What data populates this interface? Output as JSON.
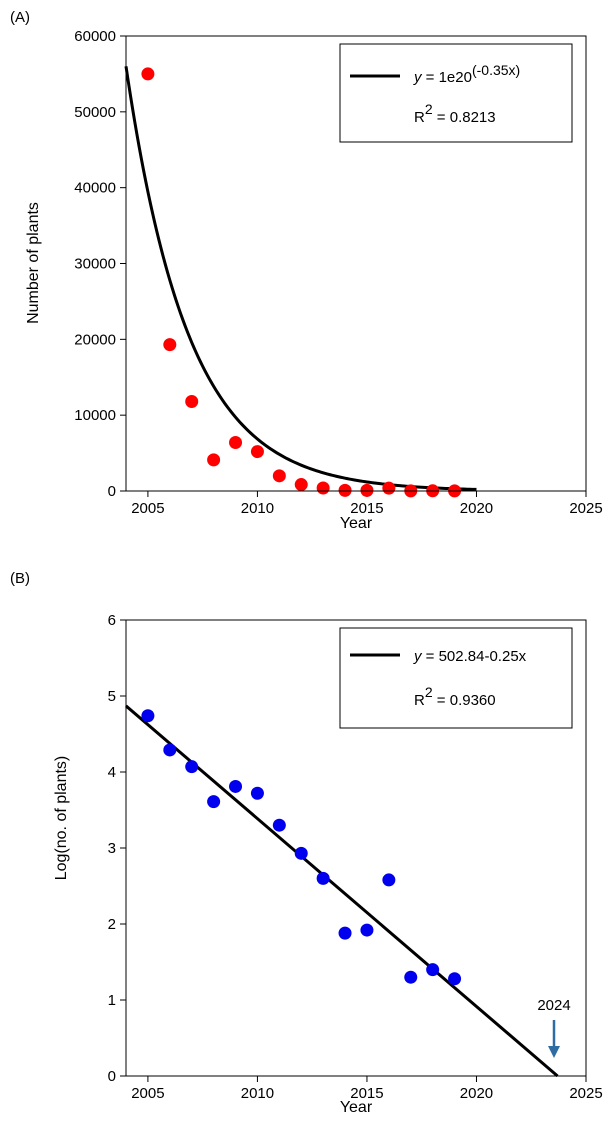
{
  "panels": [
    {
      "panel_label": "(A)",
      "legend": {
        "eq_y": "y",
        "eq_rest": " = 1e20",
        "eq_exp": "(-0.35x)",
        "r2_base": "R",
        "r2_exp": "2",
        "r2_val": " = 0.8213"
      }
    },
    {
      "panel_label": "(B)",
      "legend": {
        "eq_y": "y",
        "eq_rest": " = 502.84-0.25x",
        "r2_base": "R",
        "r2_exp": "2",
        "r2_val": " = 0.9360"
      },
      "annotation": {
        "text": "2024",
        "x": 2024,
        "color": "#2e6da4"
      }
    }
  ],
  "chart_data": [
    {
      "type": "scatter",
      "xlabel": "Year",
      "ylabel": "Number of plants",
      "xlim": [
        2004,
        2025
      ],
      "ylim": [
        0,
        60000
      ],
      "xticks": [
        2005,
        2010,
        2015,
        2020,
        2025
      ],
      "yticks": [
        0,
        10000,
        20000,
        30000,
        40000,
        50000,
        60000
      ],
      "grid": false,
      "legend_position": "top-right",
      "point_color": "#ff0000",
      "points": [
        {
          "x": 2005,
          "y": 55000
        },
        {
          "x": 2006,
          "y": 19300
        },
        {
          "x": 2007,
          "y": 11800
        },
        {
          "x": 2008,
          "y": 4100
        },
        {
          "x": 2009,
          "y": 6400
        },
        {
          "x": 2010,
          "y": 5200
        },
        {
          "x": 2011,
          "y": 2000
        },
        {
          "x": 2012,
          "y": 850
        },
        {
          "x": 2013,
          "y": 400
        },
        {
          "x": 2014,
          "y": 80
        },
        {
          "x": 2015,
          "y": 80
        },
        {
          "x": 2016,
          "y": 380
        },
        {
          "x": 2017,
          "y": 20
        },
        {
          "x": 2018,
          "y": 25
        },
        {
          "x": 2019,
          "y": 20
        }
      ],
      "fit": {
        "kind": "exponential",
        "x_start": 2004,
        "x_end": 2020,
        "y_start": 56000,
        "rate": -0.35,
        "color": "#000000"
      }
    },
    {
      "type": "scatter",
      "xlabel": "Year",
      "ylabel": "Log(no. of plants)",
      "xlim": [
        2004,
        2025
      ],
      "ylim": [
        0,
        6
      ],
      "xticks": [
        2005,
        2010,
        2015,
        2020,
        2025
      ],
      "yticks": [
        0,
        1,
        2,
        3,
        4,
        5,
        6
      ],
      "grid": false,
      "legend_position": "top-right",
      "point_color": "#0000ee",
      "points": [
        {
          "x": 2005,
          "y": 4.74
        },
        {
          "x": 2006,
          "y": 4.29
        },
        {
          "x": 2007,
          "y": 4.07
        },
        {
          "x": 2008,
          "y": 3.61
        },
        {
          "x": 2009,
          "y": 3.81
        },
        {
          "x": 2010,
          "y": 3.72
        },
        {
          "x": 2011,
          "y": 3.3
        },
        {
          "x": 2012,
          "y": 2.93
        },
        {
          "x": 2013,
          "y": 2.6
        },
        {
          "x": 2014,
          "y": 1.88
        },
        {
          "x": 2015,
          "y": 1.92
        },
        {
          "x": 2016,
          "y": 2.58
        },
        {
          "x": 2017,
          "y": 1.3
        },
        {
          "x": 2018,
          "y": 1.4
        },
        {
          "x": 2019,
          "y": 1.28
        }
      ],
      "fit": {
        "kind": "linear",
        "x_start": 2004,
        "x_end": 2023.7,
        "y_start": 4.87,
        "y_end": 0.0,
        "color": "#000000"
      }
    }
  ]
}
